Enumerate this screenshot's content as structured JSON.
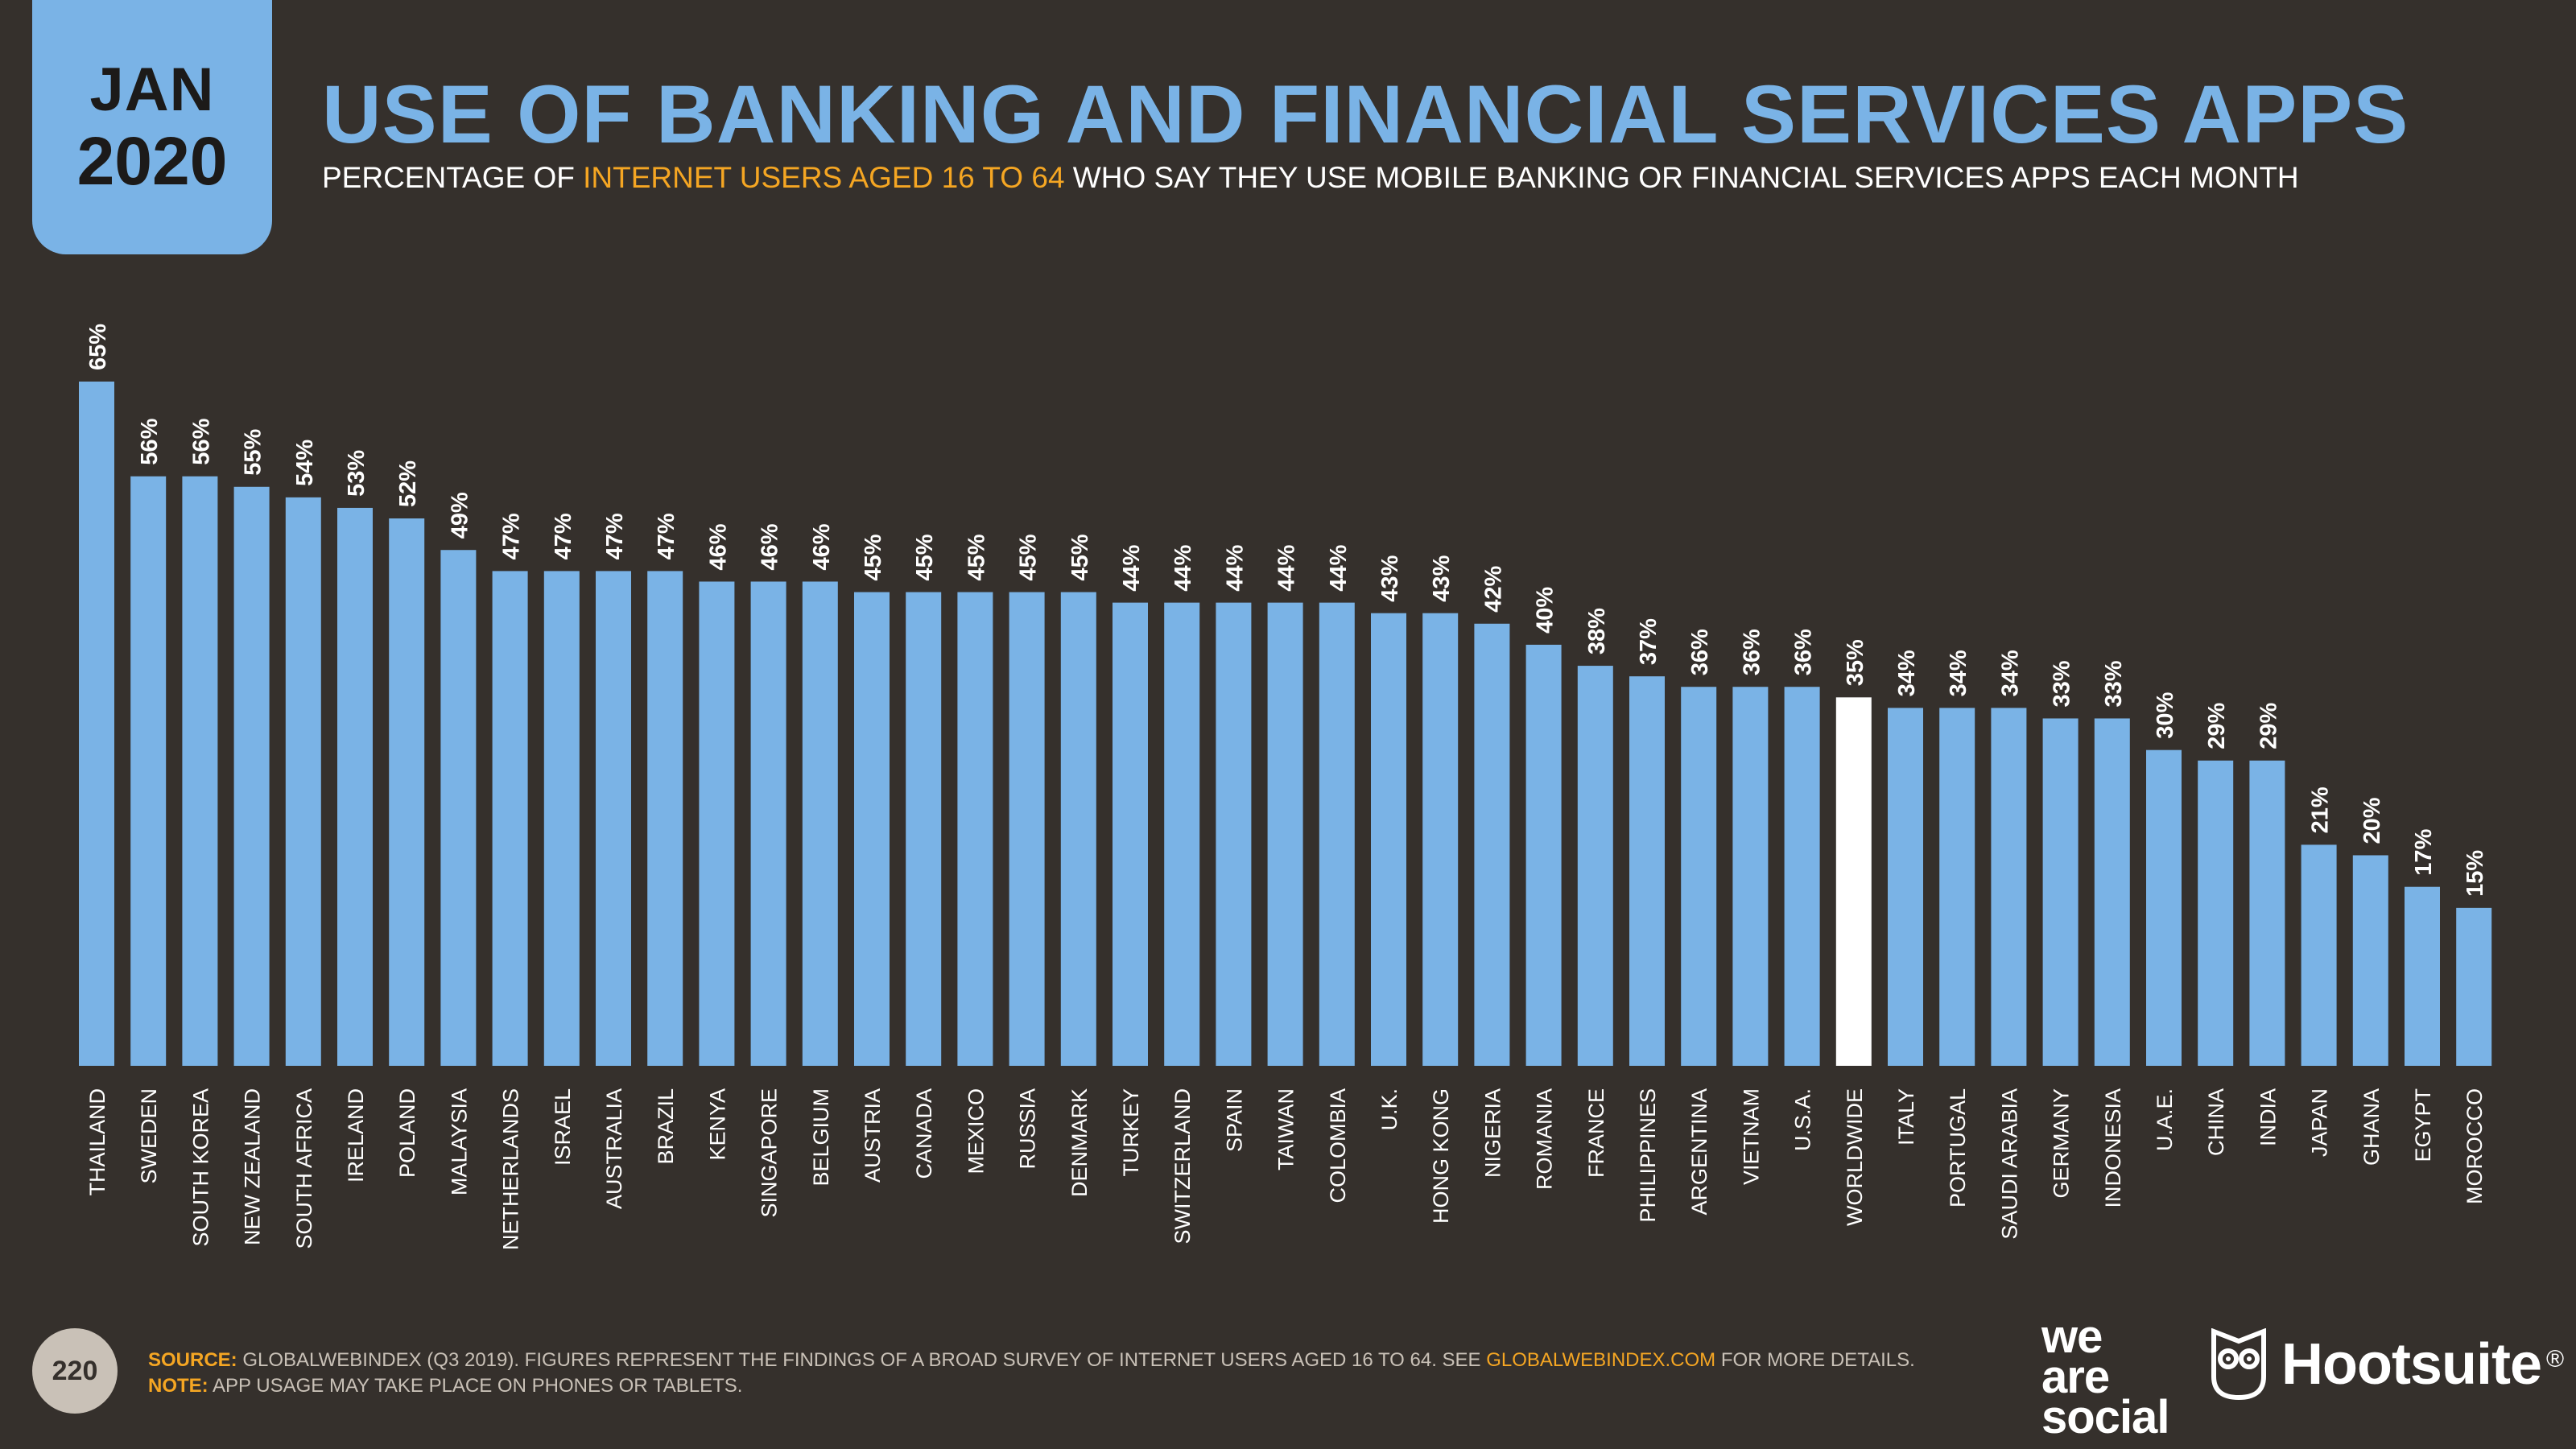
{
  "header": {
    "month": "JAN",
    "year": "2020",
    "title": "USE OF BANKING AND FINANCIAL SERVICES APPS",
    "subtitle_pre": "PERCENTAGE OF ",
    "subtitle_highlight": "INTERNET USERS AGED 16 TO 64",
    "subtitle_post": " WHO SAY THEY USE MOBILE BANKING OR FINANCIAL SERVICES APPS EACH MONTH"
  },
  "colors": {
    "bar": "#7ab3e6",
    "highlight_bar": "#ffffff",
    "value_label": "#ffffff",
    "category_label": "#ffffff",
    "accent": "#f5a623"
  },
  "chart_data": {
    "type": "bar",
    "title": "USE OF BANKING AND FINANCIAL SERVICES APPS",
    "xlabel": "",
    "ylabel": "",
    "ylim": [
      0,
      70
    ],
    "grid": false,
    "highlight_category": "WORLDWIDE",
    "value_suffix": "%",
    "categories": [
      "THAILAND",
      "SWEDEN",
      "SOUTH KOREA",
      "NEW ZEALAND",
      "SOUTH AFRICA",
      "IRELAND",
      "POLAND",
      "MALAYSIA",
      "NETHERLANDS",
      "ISRAEL",
      "AUSTRALIA",
      "BRAZIL",
      "KENYA",
      "SINGAPORE",
      "BELGIUM",
      "AUSTRIA",
      "CANADA",
      "MEXICO",
      "RUSSIA",
      "DENMARK",
      "TURKEY",
      "SWITZERLAND",
      "SPAIN",
      "TAIWAN",
      "COLOMBIA",
      "U.K.",
      "HONG KONG",
      "NIGERIA",
      "ROMANIA",
      "FRANCE",
      "PHILIPPINES",
      "ARGENTINA",
      "VIETNAM",
      "U.S.A.",
      "WORLDWIDE",
      "ITALY",
      "PORTUGAL",
      "SAUDI ARABIA",
      "GERMANY",
      "INDONESIA",
      "U.A.E.",
      "CHINA",
      "INDIA",
      "JAPAN",
      "GHANA",
      "EGYPT",
      "MOROCCO"
    ],
    "values": [
      65,
      56,
      56,
      55,
      54,
      53,
      52,
      49,
      47,
      47,
      47,
      47,
      46,
      46,
      46,
      45,
      45,
      45,
      45,
      45,
      44,
      44,
      44,
      44,
      44,
      43,
      43,
      42,
      40,
      38,
      37,
      36,
      36,
      36,
      35,
      34,
      34,
      34,
      33,
      33,
      30,
      29,
      29,
      21,
      20,
      17,
      15
    ]
  },
  "footer": {
    "page_number": "220",
    "source_label": "SOURCE:",
    "source_text": " GLOBALWEBINDEX (Q3 2019). FIGURES REPRESENT THE FINDINGS OF A BROAD SURVEY OF INTERNET USERS AGED 16 TO 64. SEE ",
    "source_link": "GLOBALWEBINDEX.COM",
    "source_end": " FOR MORE DETAILS.",
    "note_label": "NOTE:",
    "note_text": " APP USAGE MAY TAKE PLACE ON PHONES OR TABLETS."
  },
  "logos": {
    "was_line1": "we",
    "was_line2": "are",
    "was_line3": "social",
    "hootsuite": "Hootsuite",
    "hootsuite_mark": "®"
  }
}
